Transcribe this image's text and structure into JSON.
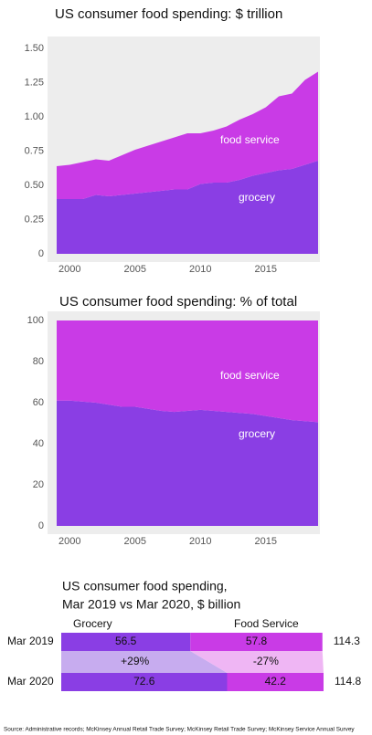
{
  "chart_data": [
    {
      "type": "area",
      "title": "US consumer food spending: $ trillion",
      "x": [
        1999,
        2000,
        2001,
        2002,
        2003,
        2004,
        2005,
        2006,
        2007,
        2008,
        2009,
        2010,
        2011,
        2012,
        2013,
        2014,
        2015,
        2016,
        2017,
        2018,
        2019
      ],
      "series": [
        {
          "name": "grocery",
          "color": "#8a3ee4",
          "values": [
            0.4,
            0.4,
            0.4,
            0.43,
            0.42,
            0.43,
            0.44,
            0.45,
            0.46,
            0.47,
            0.47,
            0.51,
            0.52,
            0.52,
            0.54,
            0.57,
            0.59,
            0.61,
            0.62,
            0.65,
            0.68
          ]
        },
        {
          "name": "food service",
          "color": "#c93be6",
          "values": [
            0.24,
            0.25,
            0.27,
            0.26,
            0.26,
            0.29,
            0.32,
            0.34,
            0.36,
            0.38,
            0.41,
            0.37,
            0.38,
            0.41,
            0.44,
            0.45,
            0.48,
            0.54,
            0.55,
            0.62,
            0.65
          ]
        }
      ],
      "xlim": [
        1999,
        2019
      ],
      "xticks": [
        2000,
        2005,
        2010,
        2015
      ],
      "ylim": [
        0,
        1.5
      ],
      "yticks": [
        0,
        {
          "value": 0.25,
          "label": "0.25"
        },
        {
          "value": 0.5,
          "label": "0.50"
        },
        {
          "value": 0.75,
          "label": "0.75"
        },
        {
          "value": 1,
          "label": "1.00"
        },
        {
          "value": 1.25,
          "label": "1.25"
        },
        {
          "value": 1.5,
          "label": "1.50"
        }
      ]
    },
    {
      "type": "area",
      "title": "US consumer food spending: % of total",
      "x": [
        1999,
        2000,
        2001,
        2002,
        2003,
        2004,
        2005,
        2006,
        2007,
        2008,
        2009,
        2010,
        2011,
        2012,
        2013,
        2014,
        2015,
        2016,
        2017,
        2018,
        2019
      ],
      "series": [
        {
          "name": "grocery",
          "color": "#8a3ee4",
          "values": [
            61,
            61,
            60.5,
            60,
            59,
            58,
            58,
            57,
            56,
            55.5,
            56,
            56.5,
            56,
            55.5,
            55,
            54.5,
            53.5,
            52.5,
            51.5,
            51,
            50.5
          ]
        },
        {
          "name": "food service",
          "color": "#c93be6",
          "values": [
            39,
            39,
            39.5,
            40,
            41,
            42,
            42,
            43,
            44,
            44.5,
            44,
            43.5,
            44,
            44.5,
            45,
            45.5,
            46.5,
            47.5,
            48.5,
            49,
            49.5
          ]
        }
      ],
      "xlim": [
        1999,
        2019
      ],
      "xticks": [
        2000,
        2005,
        2010,
        2015
      ],
      "ylim": [
        0,
        100
      ],
      "yticks": [
        0,
        20,
        40,
        60,
        80,
        100
      ]
    },
    {
      "type": "hbar",
      "title": [
        "US consumer food spending,",
        "Mar 2019 vs Mar 2020, $ billion"
      ],
      "categories": [
        "Mar 2019",
        "Mar 2020"
      ],
      "series": [
        {
          "name": "Grocery",
          "color": "#8a3ee4",
          "light": "#c7acef",
          "values": [
            56.5,
            72.6
          ],
          "change": {
            "value": 29,
            "label": "+29%"
          }
        },
        {
          "name": "Food Service",
          "color": "#c93be6",
          "light": "#efb6f4",
          "values": [
            57.8,
            42.2
          ],
          "change": {
            "value": -27,
            "label": "-27%"
          }
        }
      ],
      "totals": [
        114.3,
        114.8
      ]
    }
  ],
  "source": "Source: Administrative records; McKinsey Annual Retail Trade Survey; McKinsey Retail Trade Survey; McKinsey Service Annual Survey"
}
